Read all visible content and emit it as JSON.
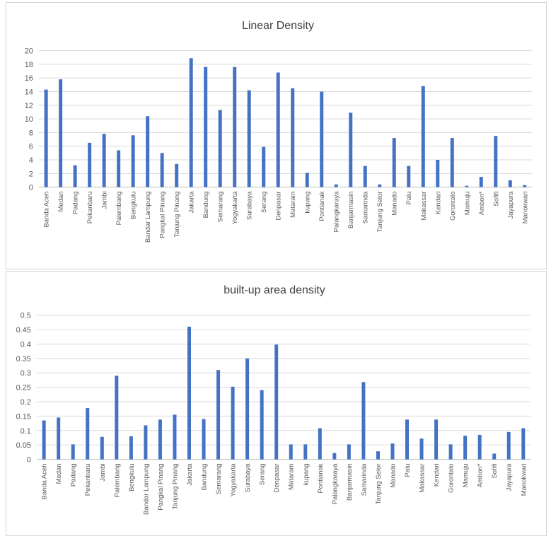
{
  "chart_data": [
    {
      "type": "bar",
      "title": "Linear Density",
      "xlabel": "",
      "ylabel": "",
      "ylim": [
        0,
        20
      ],
      "yticks": [
        "0",
        "2",
        "4",
        "6",
        "8",
        "10",
        "12",
        "14",
        "16",
        "18",
        "20"
      ],
      "grid": true,
      "legend": "none",
      "bar_color": "#4472c4",
      "categories": [
        "Banda Aceh",
        "Medan",
        "Padang",
        "Pekanbaru",
        "Jambi",
        "Palembang",
        "Bengkulu",
        "Bandar Lampung",
        "Pangkal Pinang",
        "Tanjung Pinang",
        "Jakarta",
        "Bandung",
        "Semarang",
        "Yogyakarta",
        "Surabaya",
        "Serang",
        "Denpasar",
        "Mataram",
        "kupang",
        "Pontianak",
        "Palangkaraya",
        "Banjarmasin",
        "Samarinda",
        "Tanjung Selor",
        "Manado",
        "Palu",
        "Makassar",
        "Kendari",
        "Gorontalo",
        "Mamuju",
        "Ambon*",
        "Sofifi",
        "Jayapura",
        "Manokwari"
      ],
      "values": [
        14.3,
        15.8,
        3.2,
        6.5,
        7.8,
        5.4,
        7.6,
        10.4,
        5.0,
        3.4,
        18.9,
        17.6,
        11.3,
        17.6,
        14.2,
        5.9,
        16.8,
        14.5,
        2.1,
        14.0,
        0.4,
        10.9,
        3.1,
        0.4,
        7.2,
        3.1,
        14.8,
        4.0,
        7.2,
        0.2,
        1.5,
        7.5,
        1.0,
        0.3
      ]
    },
    {
      "type": "bar",
      "title": "built-up area density",
      "xlabel": "",
      "ylabel": "",
      "ylim": [
        0,
        0.5
      ],
      "yticks": [
        "0",
        "0.05",
        "0.1",
        "0.15",
        "0.2",
        "0.25",
        "0.3",
        "0.35",
        "0.4",
        "0.45",
        "0.5"
      ],
      "grid": true,
      "legend": "none",
      "bar_color": "#4472c4",
      "categories": [
        "Banda Aceh",
        "Medan",
        "Padang",
        "Pekanbaru",
        "Jambi",
        "Palembang",
        "Bengkulu",
        "Bandar Lampung",
        "Pangkal Pinang",
        "Tanjung Pinang",
        "Jakarta",
        "Bandung",
        "Semarang",
        "Yogyakarta",
        "Surabaya",
        "Serang",
        "Denpasar",
        "Mataram",
        "kupang",
        "Pontianak",
        "Palangkaraya",
        "Banjarmasin",
        "Samarinda",
        "Tanjung Selor",
        "Manado",
        "Palu",
        "Makassar",
        "Kendari",
        "Gorontalo",
        "Mamuju",
        "Ambon*",
        "Sofifi",
        "Jayapura",
        "Manokwari"
      ],
      "values": [
        0.135,
        0.145,
        0.052,
        0.178,
        0.078,
        0.29,
        0.08,
        0.118,
        0.138,
        0.155,
        0.46,
        0.14,
        0.31,
        0.252,
        0.35,
        0.24,
        0.398,
        0.052,
        0.052,
        0.108,
        0.022,
        0.052,
        0.268,
        0.028,
        0.055,
        0.138,
        0.072,
        0.138,
        0.052,
        0.082,
        0.085,
        0.02,
        0.095,
        0.108
      ]
    }
  ]
}
